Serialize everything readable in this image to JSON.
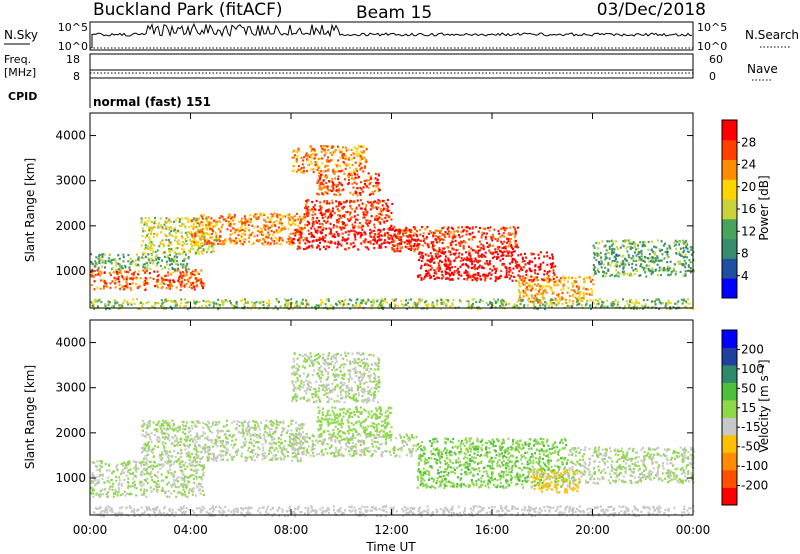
{
  "header": {
    "station": "Buckland Park (fitACF)",
    "beam": "Beam 15",
    "date": "03/Dec/2018"
  },
  "params": {
    "nsky_label": "N.Sky",
    "nsky_ticks": [
      "10^5",
      "10^0"
    ],
    "nsearch_label": "N.Search",
    "nsearch_ticks": [
      "10^5",
      "10^0"
    ],
    "freq_label_top": "Freq.",
    "freq_label_unit": "[MHz]",
    "freq_ticks": [
      "18",
      "8"
    ],
    "nave_label": "Nave",
    "nave_ticks": [
      "60",
      "0"
    ],
    "cpid_label": "CPID",
    "cpid_value": "normal (fast) 151"
  },
  "colors": {
    "power_scale": [
      "#0000ff",
      "#1f4fa0",
      "#3a8a6e",
      "#4aa35a",
      "#c8d43a",
      "#ffd400",
      "#ff8c00",
      "#ff4000",
      "#ff0000"
    ],
    "velocity_scale": [
      "#ff0000",
      "#ff5000",
      "#ff8c00",
      "#ffc000",
      "#c8c8c8",
      "#8fd84a",
      "#4cbf3c",
      "#2f8a6a",
      "#2040a0",
      "#0000ff"
    ]
  },
  "chart_data": [
    {
      "type": "heatmap",
      "name_panel": "power",
      "ylabel": "Slant Range [km]",
      "xlabel": "",
      "xlim_hours": [
        0,
        24
      ],
      "ylim_km": [
        180,
        4500
      ],
      "ytick_values": [
        1000,
        2000,
        3000,
        4000
      ],
      "xtick_labels": [],
      "colorbar_label": "Power [dB]",
      "colorbar_ticks": [
        "4",
        "8",
        "12",
        "16",
        "20",
        "24",
        "28"
      ],
      "colorbar_range": [
        0,
        30
      ],
      "regions": [
        {
          "t0": 0.0,
          "t1": 4.5,
          "r0": 600,
          "r1": 1050,
          "value": 24
        },
        {
          "t0": 0.0,
          "t1": 4.0,
          "r0": 1050,
          "r1": 1400,
          "value": 12
        },
        {
          "t0": 2.0,
          "t1": 5.0,
          "r0": 1400,
          "r1": 2200,
          "value": 16
        },
        {
          "t0": 4.0,
          "t1": 8.5,
          "r0": 1600,
          "r1": 2300,
          "value": 22
        },
        {
          "t0": 8.0,
          "t1": 13.0,
          "r0": 1500,
          "r1": 1950,
          "value": 29
        },
        {
          "t0": 8.5,
          "t1": 12.0,
          "r0": 1950,
          "r1": 2600,
          "value": 26
        },
        {
          "t0": 9.0,
          "t1": 11.5,
          "r0": 2700,
          "r1": 3200,
          "value": 25
        },
        {
          "t0": 8.0,
          "t1": 11.0,
          "r0": 3200,
          "r1": 3800,
          "value": 22
        },
        {
          "t0": 13.0,
          "t1": 18.5,
          "r0": 800,
          "r1": 1450,
          "value": 29
        },
        {
          "t0": 12.0,
          "t1": 17.0,
          "r0": 1450,
          "r1": 2000,
          "value": 26
        },
        {
          "t0": 17.0,
          "t1": 20.0,
          "r0": 300,
          "r1": 900,
          "value": 20
        },
        {
          "t0": 20.0,
          "t1": 24.0,
          "r0": 900,
          "r1": 1700,
          "value": 11
        },
        {
          "t0": 0.0,
          "t1": 24.0,
          "r0": 180,
          "r1": 400,
          "value": 14
        }
      ]
    },
    {
      "type": "heatmap",
      "name_panel": "velocity",
      "ylabel": "Slant Range [km]",
      "xlabel": "Time UT",
      "xlim_hours": [
        0,
        24
      ],
      "ylim_km": [
        180,
        4500
      ],
      "ytick_values": [
        1000,
        2000,
        3000,
        4000
      ],
      "xtick_labels": [
        "00:00",
        "04:00",
        "08:00",
        "12:00",
        "16:00",
        "20:00",
        "00:00"
      ],
      "colorbar_label": "Velocity [m s⁻¹]",
      "colorbar_ticks": [
        "-200",
        "-100",
        "-50",
        "-15",
        "15",
        "50",
        "100",
        "200"
      ],
      "colorbar_range": [
        -250,
        250
      ],
      "regions": [
        {
          "t0": 0.0,
          "t1": 4.5,
          "r0": 600,
          "r1": 1400,
          "value": 0
        },
        {
          "t0": 2.0,
          "t1": 8.5,
          "r0": 1400,
          "r1": 2300,
          "value": 0
        },
        {
          "t0": 8.0,
          "t1": 13.0,
          "r0": 1500,
          "r1": 2000,
          "value": 0
        },
        {
          "t0": 9.0,
          "t1": 12.0,
          "r0": 1950,
          "r1": 2600,
          "value": 30
        },
        {
          "t0": 8.0,
          "t1": 11.5,
          "r0": 2700,
          "r1": 3800,
          "value": 0
        },
        {
          "t0": 13.0,
          "t1": 19.0,
          "r0": 800,
          "r1": 1900,
          "value": 45
        },
        {
          "t0": 17.5,
          "t1": 19.5,
          "r0": 700,
          "r1": 1200,
          "value": -60
        },
        {
          "t0": 19.0,
          "t1": 24.0,
          "r0": 900,
          "r1": 1700,
          "value": 0
        },
        {
          "t0": 0.0,
          "t1": 24.0,
          "r0": 180,
          "r1": 400,
          "value": -30
        }
      ]
    }
  ]
}
